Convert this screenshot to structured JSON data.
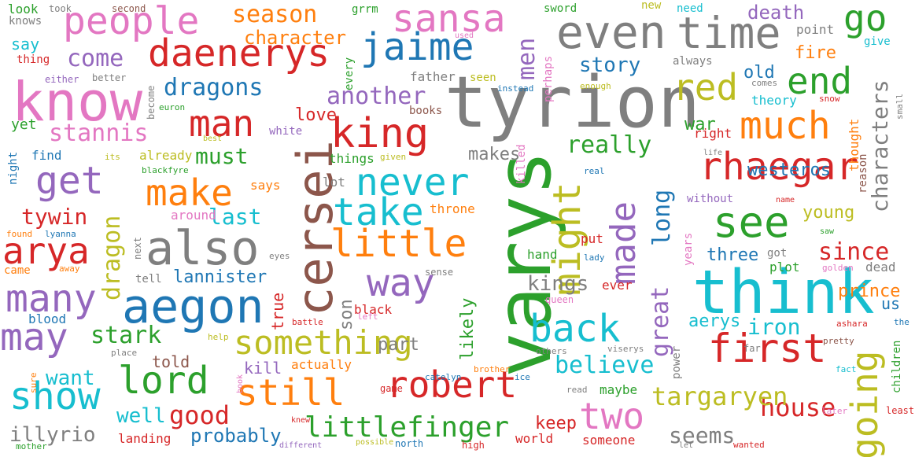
{
  "colors": {
    "red": "#d62728",
    "blue": "#1f77b4",
    "green": "#2ca02c",
    "orange": "#ff7f0e",
    "purple": "#9467bd",
    "pink": "#e377c2",
    "gray": "#7f7f7f",
    "olive": "#bcbd22",
    "cyan": "#17becf",
    "brown": "#8c564b"
  },
  "words": [
    {
      "text": "varys",
      "color": "green",
      "orientation": "vertical"
    },
    {
      "text": "tyrion",
      "color": "gray",
      "orientation": "horizontal"
    },
    {
      "text": "think",
      "color": "cyan",
      "orientation": "horizontal"
    },
    {
      "text": "know",
      "color": "pink",
      "orientation": "horizontal"
    },
    {
      "text": "cersei",
      "color": "brown",
      "orientation": "vertical"
    },
    {
      "text": "aegon",
      "color": "blue",
      "orientation": "horizontal"
    },
    {
      "text": "also",
      "color": "gray",
      "orientation": "horizontal"
    },
    {
      "text": "even",
      "color": "gray",
      "orientation": "horizontal"
    },
    {
      "text": "time",
      "color": "gray",
      "orientation": "horizontal"
    },
    {
      "text": "daenerys",
      "color": "red",
      "orientation": "horizontal"
    },
    {
      "text": "people",
      "color": "pink",
      "orientation": "horizontal"
    },
    {
      "text": "sansa",
      "color": "pink",
      "orientation": "horizontal"
    },
    {
      "text": "jaime",
      "color": "blue",
      "orientation": "horizontal"
    },
    {
      "text": "king",
      "color": "red",
      "orientation": "horizontal"
    },
    {
      "text": "first",
      "color": "red",
      "orientation": "horizontal"
    },
    {
      "text": "going",
      "color": "olive",
      "orientation": "vertical"
    },
    {
      "text": "still",
      "color": "orange",
      "orientation": "horizontal"
    },
    {
      "text": "robert",
      "color": "red",
      "orientation": "horizontal"
    },
    {
      "text": "little",
      "color": "orange",
      "orientation": "horizontal"
    },
    {
      "text": "show",
      "color": "cyan",
      "orientation": "horizontal"
    },
    {
      "text": "lord",
      "color": "green",
      "orientation": "horizontal"
    },
    {
      "text": "may",
      "color": "purple",
      "orientation": "horizontal"
    },
    {
      "text": "many",
      "color": "purple",
      "orientation": "horizontal"
    },
    {
      "text": "arya",
      "color": "red",
      "orientation": "horizontal"
    },
    {
      "text": "way",
      "color": "purple",
      "orientation": "horizontal"
    },
    {
      "text": "take",
      "color": "cyan",
      "orientation": "horizontal"
    },
    {
      "text": "never",
      "color": "cyan",
      "orientation": "horizontal"
    },
    {
      "text": "might",
      "color": "olive",
      "orientation": "vertical"
    },
    {
      "text": "made",
      "color": "purple",
      "orientation": "vertical"
    },
    {
      "text": "see",
      "color": "green",
      "orientation": "horizontal"
    },
    {
      "text": "rhaegar",
      "color": "red",
      "orientation": "horizontal"
    },
    {
      "text": "much",
      "color": "orange",
      "orientation": "horizontal"
    },
    {
      "text": "red",
      "color": "olive",
      "orientation": "horizontal"
    },
    {
      "text": "end",
      "color": "green",
      "orientation": "horizontal"
    },
    {
      "text": "go",
      "color": "green",
      "orientation": "horizontal"
    },
    {
      "text": "man",
      "color": "red",
      "orientation": "horizontal"
    },
    {
      "text": "make",
      "color": "orange",
      "orientation": "horizontal"
    },
    {
      "text": "get",
      "color": "purple",
      "orientation": "horizontal"
    },
    {
      "text": "back",
      "color": "cyan",
      "orientation": "horizontal"
    },
    {
      "text": "something",
      "color": "olive",
      "orientation": "horizontal"
    },
    {
      "text": "two",
      "color": "pink",
      "orientation": "horizontal"
    },
    {
      "text": "littlefinger",
      "color": "green",
      "orientation": "horizontal"
    },
    {
      "text": "good",
      "color": "red",
      "orientation": "horizontal"
    },
    {
      "text": "house",
      "color": "red",
      "orientation": "horizontal"
    },
    {
      "text": "targaryen",
      "color": "olive",
      "orientation": "horizontal"
    },
    {
      "text": "believe",
      "color": "cyan",
      "orientation": "horizontal"
    },
    {
      "text": "great",
      "color": "purple",
      "orientation": "vertical"
    },
    {
      "text": "long",
      "color": "blue",
      "orientation": "vertical"
    },
    {
      "text": "characters",
      "color": "gray",
      "orientation": "vertical"
    },
    {
      "text": "men",
      "color": "purple",
      "orientation": "vertical"
    },
    {
      "text": "dragon",
      "color": "olive",
      "orientation": "vertical"
    },
    {
      "text": "dragons",
      "color": "blue",
      "orientation": "horizontal"
    },
    {
      "text": "stannis",
      "color": "pink",
      "orientation": "horizontal"
    },
    {
      "text": "season",
      "color": "orange",
      "orientation": "horizontal"
    },
    {
      "text": "character",
      "color": "orange",
      "orientation": "horizontal"
    },
    {
      "text": "come",
      "color": "purple",
      "orientation": "horizontal"
    },
    {
      "text": "story",
      "color": "blue",
      "orientation": "horizontal"
    },
    {
      "text": "another",
      "color": "purple",
      "orientation": "horizontal"
    },
    {
      "text": "really",
      "color": "green",
      "orientation": "horizontal"
    },
    {
      "text": "must",
      "color": "green",
      "orientation": "horizontal"
    },
    {
      "text": "tywin",
      "color": "red",
      "orientation": "horizontal"
    },
    {
      "text": "last",
      "color": "cyan",
      "orientation": "horizontal"
    },
    {
      "text": "stark",
      "color": "green",
      "orientation": "horizontal"
    },
    {
      "text": "want",
      "color": "cyan",
      "orientation": "horizontal"
    },
    {
      "text": "well",
      "color": "cyan",
      "orientation": "horizontal"
    },
    {
      "text": "illyrio",
      "color": "gray",
      "orientation": "horizontal"
    },
    {
      "text": "probably",
      "color": "blue",
      "orientation": "horizontal"
    },
    {
      "text": "seems",
      "color": "gray",
      "orientation": "horizontal"
    },
    {
      "text": "kings",
      "color": "gray",
      "orientation": "horizontal"
    },
    {
      "text": "iron",
      "color": "cyan",
      "orientation": "horizontal"
    },
    {
      "text": "since",
      "color": "red",
      "orientation": "horizontal"
    },
    {
      "text": "prince",
      "color": "orange",
      "orientation": "horizontal"
    },
    {
      "text": "aerys",
      "color": "cyan",
      "orientation": "horizontal"
    },
    {
      "text": "westeros",
      "color": "blue",
      "orientation": "horizontal"
    },
    {
      "text": "lannister",
      "color": "blue",
      "orientation": "horizontal"
    },
    {
      "text": "love",
      "color": "red",
      "orientation": "horizontal"
    },
    {
      "text": "death",
      "color": "purple",
      "orientation": "horizontal"
    },
    {
      "text": "fire",
      "color": "orange",
      "orientation": "horizontal"
    },
    {
      "text": "old",
      "color": "blue",
      "orientation": "horizontal"
    },
    {
      "text": "war",
      "color": "green",
      "orientation": "horizontal"
    },
    {
      "text": "makes",
      "color": "gray",
      "orientation": "horizontal"
    },
    {
      "text": "young",
      "color": "olive",
      "orientation": "horizontal"
    },
    {
      "text": "three",
      "color": "blue",
      "orientation": "horizontal"
    },
    {
      "text": "part",
      "color": "gray",
      "orientation": "horizontal"
    },
    {
      "text": "kill",
      "color": "purple",
      "orientation": "horizontal"
    },
    {
      "text": "told",
      "color": "brown",
      "orientation": "horizontal"
    },
    {
      "text": "son",
      "color": "gray",
      "orientation": "vertical"
    },
    {
      "text": "true",
      "color": "red",
      "orientation": "vertical"
    },
    {
      "text": "likely",
      "color": "green",
      "orientation": "vertical"
    },
    {
      "text": "keep",
      "color": "red",
      "orientation": "horizontal"
    },
    {
      "text": "us",
      "color": "blue",
      "orientation": "horizontal"
    },
    {
      "text": "say",
      "color": "cyan",
      "orientation": "horizontal"
    },
    {
      "text": "yet",
      "color": "green",
      "orientation": "horizontal"
    },
    {
      "text": "blood",
      "color": "blue",
      "orientation": "horizontal"
    },
    {
      "text": "landing",
      "color": "red",
      "orientation": "horizontal"
    },
    {
      "text": "theory",
      "color": "cyan",
      "orientation": "horizontal"
    },
    {
      "text": "hand",
      "color": "green",
      "orientation": "horizontal"
    },
    {
      "text": "plot",
      "color": "green",
      "orientation": "horizontal"
    },
    {
      "text": "dead",
      "color": "gray",
      "orientation": "horizontal"
    },
    {
      "text": "maybe",
      "color": "green",
      "orientation": "horizontal"
    },
    {
      "text": "actually",
      "color": "orange",
      "orientation": "horizontal"
    },
    {
      "text": "black",
      "color": "red",
      "orientation": "horizontal"
    },
    {
      "text": "throne",
      "color": "orange",
      "orientation": "horizontal"
    },
    {
      "text": "put",
      "color": "red",
      "orientation": "horizontal"
    },
    {
      "text": "ever",
      "color": "red",
      "orientation": "horizontal"
    },
    {
      "text": "world",
      "color": "red",
      "orientation": "horizontal"
    },
    {
      "text": "someone",
      "color": "red",
      "orientation": "horizontal"
    },
    {
      "text": "around",
      "color": "pink",
      "orientation": "horizontal"
    },
    {
      "text": "lot",
      "color": "gray",
      "orientation": "horizontal"
    },
    {
      "text": "says",
      "color": "orange",
      "orientation": "horizontal"
    },
    {
      "text": "things",
      "color": "green",
      "orientation": "horizontal"
    },
    {
      "text": "already",
      "color": "olive",
      "orientation": "horizontal"
    },
    {
      "text": "find",
      "color": "blue",
      "orientation": "horizontal"
    },
    {
      "text": "father",
      "color": "gray",
      "orientation": "horizontal"
    },
    {
      "text": "seen",
      "color": "olive",
      "orientation": "horizontal"
    },
    {
      "text": "books",
      "color": "brown",
      "orientation": "horizontal"
    },
    {
      "text": "white",
      "color": "purple",
      "orientation": "horizontal"
    },
    {
      "text": "tell",
      "color": "gray",
      "orientation": "horizontal"
    },
    {
      "text": "without",
      "color": "purple",
      "orientation": "horizontal"
    },
    {
      "text": "always",
      "color": "gray",
      "orientation": "horizontal"
    },
    {
      "text": "point",
      "color": "gray",
      "orientation": "horizontal"
    },
    {
      "text": "right",
      "color": "red",
      "orientation": "horizontal"
    },
    {
      "text": "thought",
      "color": "orange",
      "orientation": "vertical"
    },
    {
      "text": "reason",
      "color": "brown",
      "orientation": "vertical"
    },
    {
      "text": "years",
      "color": "pink",
      "orientation": "vertical"
    },
    {
      "text": "power",
      "color": "gray",
      "orientation": "vertical"
    },
    {
      "text": "children",
      "color": "green",
      "orientation": "vertical"
    },
    {
      "text": "every",
      "color": "green",
      "orientation": "vertical"
    },
    {
      "text": "perhaps",
      "color": "pink",
      "orientation": "vertical"
    },
    {
      "text": "killed",
      "color": "pink",
      "orientation": "vertical"
    },
    {
      "text": "next",
      "color": "gray",
      "orientation": "vertical"
    },
    {
      "text": "become",
      "color": "gray",
      "orientation": "vertical"
    },
    {
      "text": "look",
      "color": "green",
      "orientation": "horizontal"
    },
    {
      "text": "knows",
      "color": "gray",
      "orientation": "horizontal"
    },
    {
      "text": "took",
      "color": "gray",
      "orientation": "horizontal"
    },
    {
      "text": "second",
      "color": "brown",
      "orientation": "horizontal"
    },
    {
      "text": "grrm",
      "color": "green",
      "orientation": "horizontal"
    },
    {
      "text": "sword",
      "color": "green",
      "orientation": "horizontal"
    },
    {
      "text": "new",
      "color": "olive",
      "orientation": "horizontal"
    },
    {
      "text": "need",
      "color": "cyan",
      "orientation": "horizontal"
    },
    {
      "text": "give",
      "color": "cyan",
      "orientation": "horizontal"
    },
    {
      "text": "used",
      "color": "pink",
      "orientation": "horizontal"
    },
    {
      "text": "thing",
      "color": "red",
      "orientation": "horizontal"
    },
    {
      "text": "either",
      "color": "purple",
      "orientation": "horizontal"
    },
    {
      "text": "better",
      "color": "gray",
      "orientation": "horizontal"
    },
    {
      "text": "euron",
      "color": "green",
      "orientation": "horizontal"
    },
    {
      "text": "instead",
      "color": "blue",
      "orientation": "horizontal"
    },
    {
      "text": "enough",
      "color": "olive",
      "orientation": "horizontal"
    },
    {
      "text": "comes",
      "color": "gray",
      "orientation": "horizontal"
    },
    {
      "text": "snow",
      "color": "red",
      "orientation": "horizontal"
    },
    {
      "text": "small",
      "color": "gray",
      "orientation": "vertical"
    },
    {
      "text": "night",
      "color": "blue",
      "orientation": "vertical"
    },
    {
      "text": "its",
      "color": "olive",
      "orientation": "horizontal"
    },
    {
      "text": "blackfyre",
      "color": "green",
      "orientation": "horizontal"
    },
    {
      "text": "best",
      "color": "olive",
      "orientation": "horizontal"
    },
    {
      "text": "given",
      "color": "olive",
      "orientation": "horizontal"
    },
    {
      "text": "life",
      "color": "gray",
      "orientation": "horizontal"
    },
    {
      "text": "real",
      "color": "blue",
      "orientation": "horizontal"
    },
    {
      "text": "name",
      "color": "red",
      "orientation": "horizontal"
    },
    {
      "text": "saw",
      "color": "green",
      "orientation": "horizontal"
    },
    {
      "text": "found",
      "color": "orange",
      "orientation": "horizontal"
    },
    {
      "text": "lyanna",
      "color": "blue",
      "orientation": "horizontal"
    },
    {
      "text": "came",
      "color": "orange",
      "orientation": "horizontal"
    },
    {
      "text": "away",
      "color": "orange",
      "orientation": "horizontal"
    },
    {
      "text": "eyes",
      "color": "gray",
      "orientation": "horizontal"
    },
    {
      "text": "lady",
      "color": "blue",
      "orientation": "horizontal"
    },
    {
      "text": "got",
      "color": "gray",
      "orientation": "horizontal"
    },
    {
      "text": "golden",
      "color": "pink",
      "orientation": "horizontal"
    },
    {
      "text": "sense",
      "color": "gray",
      "orientation": "horizontal"
    },
    {
      "text": "queen",
      "color": "pink",
      "orientation": "horizontal"
    },
    {
      "text": "left",
      "color": "pink",
      "orientation": "horizontal"
    },
    {
      "text": "battle",
      "color": "red",
      "orientation": "horizontal"
    },
    {
      "text": "ashara",
      "color": "red",
      "orientation": "horizontal"
    },
    {
      "text": "the",
      "color": "blue",
      "orientation": "horizontal"
    },
    {
      "text": "help",
      "color": "olive",
      "orientation": "horizontal"
    },
    {
      "text": "place",
      "color": "gray",
      "orientation": "horizontal"
    },
    {
      "text": "others",
      "color": "gray",
      "orientation": "horizontal"
    },
    {
      "text": "viserys",
      "color": "gray",
      "orientation": "horizontal"
    },
    {
      "text": "far",
      "color": "gray",
      "orientation": "horizontal"
    },
    {
      "text": "pretty",
      "color": "brown",
      "orientation": "horizontal"
    },
    {
      "text": "brother",
      "color": "orange",
      "orientation": "horizontal"
    },
    {
      "text": "catelyn",
      "color": "blue",
      "orientation": "horizontal"
    },
    {
      "text": "ice",
      "color": "blue",
      "orientation": "horizontal"
    },
    {
      "text": "fact",
      "color": "cyan",
      "orientation": "horizontal"
    },
    {
      "text": "sure",
      "color": "orange",
      "orientation": "vertical"
    },
    {
      "text": "game",
      "color": "red",
      "orientation": "horizontal"
    },
    {
      "text": "book",
      "color": "pink",
      "orientation": "vertical"
    },
    {
      "text": "read",
      "color": "gray",
      "orientation": "horizontal"
    },
    {
      "text": "later",
      "color": "pink",
      "orientation": "horizontal"
    },
    {
      "text": "least",
      "color": "red",
      "orientation": "horizontal"
    },
    {
      "text": "knew",
      "color": "red",
      "orientation": "horizontal"
    },
    {
      "text": "mother",
      "color": "green",
      "orientation": "horizontal"
    },
    {
      "text": "different",
      "color": "purple",
      "orientation": "horizontal"
    },
    {
      "text": "possible",
      "color": "olive",
      "orientation": "horizontal"
    },
    {
      "text": "north",
      "color": "blue",
      "orientation": "horizontal"
    },
    {
      "text": "high",
      "color": "red",
      "orientation": "horizontal"
    },
    {
      "text": "let",
      "color": "gray",
      "orientation": "horizontal"
    },
    {
      "text": "wanted",
      "color": "red",
      "orientation": "horizontal"
    }
  ]
}
